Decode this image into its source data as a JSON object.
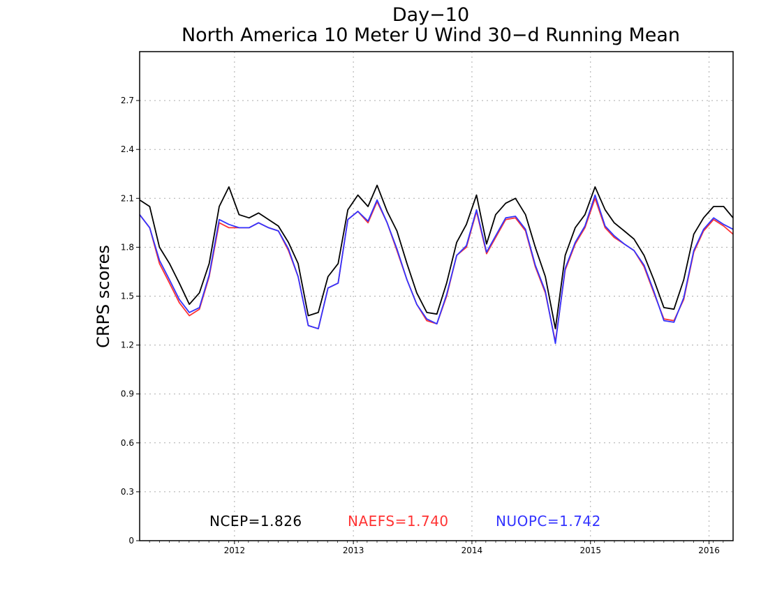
{
  "chart_data": {
    "type": "line",
    "title": "Day−10",
    "subtitle": "North America 10 Meter U Wind 30−d Running Mean",
    "ylabel": "CRPS scores",
    "xlabel": "",
    "xlim": [
      "2011-03-15",
      "2016-03-15"
    ],
    "ylim": [
      0,
      3.0
    ],
    "yticks": [
      0,
      0.3,
      0.6,
      0.9,
      1.2,
      1.5,
      1.8,
      2.1,
      2.4,
      2.7
    ],
    "ytick_labels": [
      "0",
      "0.3",
      "0.6",
      "0.9",
      "1.2",
      "1.5",
      "1.8",
      "2.1",
      "2.4",
      "2.7"
    ],
    "xticks": [
      "2012-01-01",
      "2013-01-01",
      "2014-01-01",
      "2015-01-01",
      "2016-01-01"
    ],
    "xtick_labels": [
      "2012",
      "2013",
      "2014",
      "2015",
      "2016"
    ],
    "grid": true,
    "x": [
      "2011-03-15",
      "2011-04-15",
      "2011-05-15",
      "2011-06-15",
      "2011-07-15",
      "2011-08-15",
      "2011-09-15",
      "2011-10-15",
      "2011-11-15",
      "2011-12-15",
      "2012-01-15",
      "2012-02-15",
      "2012-03-15",
      "2012-04-15",
      "2012-05-15",
      "2012-06-15",
      "2012-07-15",
      "2012-08-15",
      "2012-09-15",
      "2012-10-15",
      "2012-11-15",
      "2012-12-15",
      "2013-01-15",
      "2013-02-15",
      "2013-03-15",
      "2013-04-15",
      "2013-05-15",
      "2013-06-15",
      "2013-07-15",
      "2013-08-15",
      "2013-09-15",
      "2013-10-15",
      "2013-11-15",
      "2013-12-15",
      "2014-01-15",
      "2014-02-15",
      "2014-03-15",
      "2014-04-15",
      "2014-05-15",
      "2014-06-15",
      "2014-07-15",
      "2014-08-15",
      "2014-09-15",
      "2014-10-15",
      "2014-11-15",
      "2014-12-15",
      "2015-01-15",
      "2015-02-15",
      "2015-03-15",
      "2015-04-15",
      "2015-05-15",
      "2015-06-15",
      "2015-07-15",
      "2015-08-15",
      "2015-09-15",
      "2015-10-15",
      "2015-11-15",
      "2015-12-15",
      "2016-01-15",
      "2016-02-15",
      "2016-03-15"
    ],
    "series": [
      {
        "name": "NCEP",
        "mean_label": "NCEP=1.826",
        "color": "#000000",
        "values": [
          2.09,
          2.05,
          1.8,
          1.7,
          1.58,
          1.45,
          1.52,
          1.7,
          2.05,
          2.17,
          2.0,
          1.98,
          2.01,
          1.97,
          1.93,
          1.83,
          1.7,
          1.38,
          1.4,
          1.62,
          1.7,
          2.03,
          2.12,
          2.05,
          2.18,
          2.02,
          1.9,
          1.7,
          1.52,
          1.4,
          1.39,
          1.58,
          1.83,
          1.94,
          2.12,
          1.82,
          2.0,
          2.07,
          2.1,
          2.0,
          1.8,
          1.62,
          1.3,
          1.75,
          1.92,
          2.0,
          2.17,
          2.03,
          1.95,
          1.9,
          1.85,
          1.75,
          1.6,
          1.43,
          1.42,
          1.6,
          1.88,
          1.98,
          2.05,
          2.05,
          1.98
        ]
      },
      {
        "name": "NAEFS",
        "mean_label": "NAEFS=1.740",
        "color": "#ff3333",
        "values": [
          2.0,
          1.92,
          1.7,
          1.58,
          1.46,
          1.38,
          1.42,
          1.62,
          1.95,
          1.92,
          1.92,
          1.92,
          1.95,
          1.92,
          1.9,
          1.78,
          1.62,
          1.32,
          1.3,
          1.55,
          1.58,
          1.97,
          2.02,
          1.95,
          2.08,
          1.95,
          1.78,
          1.6,
          1.45,
          1.35,
          1.33,
          1.5,
          1.75,
          1.8,
          2.02,
          1.76,
          1.86,
          1.97,
          1.98,
          1.9,
          1.68,
          1.52,
          1.22,
          1.66,
          1.82,
          1.92,
          2.1,
          1.92,
          1.86,
          1.82,
          1.78,
          1.68,
          1.52,
          1.36,
          1.35,
          1.48,
          1.77,
          1.9,
          1.97,
          1.93,
          1.88
        ]
      },
      {
        "name": "NUOPC",
        "mean_label": "NUOPC=1.742",
        "color": "#3333ff",
        "values": [
          2.0,
          1.92,
          1.72,
          1.6,
          1.48,
          1.4,
          1.43,
          1.63,
          1.97,
          1.94,
          1.92,
          1.92,
          1.95,
          1.92,
          1.9,
          1.79,
          1.62,
          1.32,
          1.3,
          1.55,
          1.58,
          1.97,
          2.02,
          1.96,
          2.09,
          1.95,
          1.79,
          1.6,
          1.45,
          1.36,
          1.33,
          1.51,
          1.75,
          1.81,
          2.03,
          1.77,
          1.87,
          1.98,
          1.99,
          1.91,
          1.69,
          1.53,
          1.21,
          1.67,
          1.83,
          1.93,
          2.12,
          1.93,
          1.87,
          1.82,
          1.78,
          1.69,
          1.53,
          1.35,
          1.34,
          1.49,
          1.78,
          1.91,
          1.98,
          1.94,
          1.91
        ]
      }
    ]
  }
}
